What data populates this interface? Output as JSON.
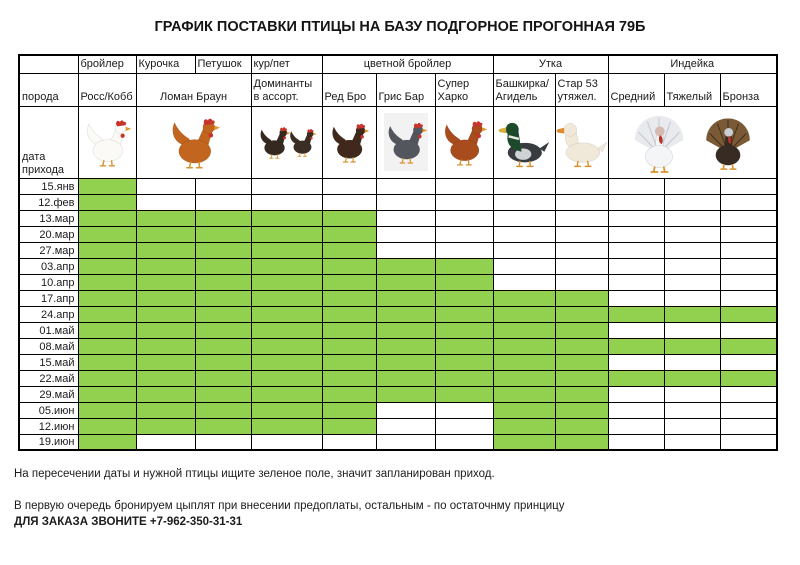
{
  "title": "ГРАФИК ПОСТАВКИ ПТИЦЫ НА БАЗУ ПОДГОРНОЕ ПРОГОННАЯ 79Б",
  "colors": {
    "scheduled_green": "#92d050",
    "border": "#000000"
  },
  "table": {
    "breed_label": "порода",
    "date_label": "дата прихода",
    "groups": {
      "broiler": "бройлер",
      "hen": "Курочка",
      "rooster": "Петушок",
      "hen_rooster": "кур/пет",
      "colored_broiler": "цветной бройлер",
      "duck": "Утка",
      "turkey": "Индейка"
    },
    "breeds": {
      "ross_cobb": "Росс/Кобб",
      "loman_braun": "Ломан Браун",
      "dominanty": "Доминанты в ассорт.",
      "red_bro": "Ред Бро",
      "gris_bar": "Грис Бар",
      "super_harko": "Супер Харко",
      "bashkirka": "Башкирка/Агидель",
      "star53": "Стар 53 утяжел.",
      "sredniy": "Средний",
      "tyazhelyi": "Тяжелый",
      "bronza": "Бронза"
    },
    "bird_photos": [
      "white-broiler-chicken-photo",
      "brown-loman-braun-hen-photo",
      "two-dark-dominant-hens-photo",
      "dark-red-bro-hen-photo",
      "gray-gris-bar-rooster-photo",
      "red-super-harko-hen-photo",
      "mallard-bashkirka-duck-photo",
      "white-star53-duck-photo",
      "white-turkey-photo",
      "bronze-turkey-photo"
    ],
    "columns": [
      "Росс/Кобб",
      "Ломан Браун (Курочка)",
      "Ломан Браун (Петушок)",
      "Доминанты в ассорт.",
      "Ред Бро",
      "Грис Бар",
      "Супер Харко",
      "Башкирка/Агидель",
      "Стар 53 утяжел.",
      "Средний",
      "Тяжелый",
      "Бронза"
    ],
    "rows": [
      {
        "date": "15.янв",
        "cells": [
          1,
          0,
          0,
          0,
          0,
          0,
          0,
          0,
          0,
          0,
          0,
          0
        ]
      },
      {
        "date": "12.фев",
        "cells": [
          1,
          0,
          0,
          0,
          0,
          0,
          0,
          0,
          0,
          0,
          0,
          0
        ]
      },
      {
        "date": "13.мар",
        "cells": [
          1,
          1,
          1,
          1,
          1,
          0,
          0,
          0,
          0,
          0,
          0,
          0
        ]
      },
      {
        "date": "20.мар",
        "cells": [
          1,
          1,
          1,
          1,
          1,
          0,
          0,
          0,
          0,
          0,
          0,
          0
        ]
      },
      {
        "date": "27.мар",
        "cells": [
          1,
          1,
          1,
          1,
          1,
          0,
          0,
          0,
          0,
          0,
          0,
          0
        ]
      },
      {
        "date": "03.апр",
        "cells": [
          1,
          1,
          1,
          1,
          1,
          1,
          1,
          0,
          0,
          0,
          0,
          0
        ]
      },
      {
        "date": "10.апр",
        "cells": [
          1,
          1,
          1,
          1,
          1,
          1,
          1,
          0,
          0,
          0,
          0,
          0
        ]
      },
      {
        "date": "17.апр",
        "cells": [
          1,
          1,
          1,
          1,
          1,
          1,
          1,
          1,
          1,
          0,
          0,
          0
        ]
      },
      {
        "date": "24.апр",
        "cells": [
          1,
          1,
          1,
          1,
          1,
          1,
          1,
          1,
          1,
          1,
          1,
          1
        ]
      },
      {
        "date": "01.май",
        "cells": [
          1,
          1,
          1,
          1,
          1,
          1,
          1,
          1,
          1,
          0,
          0,
          0
        ]
      },
      {
        "date": "08.май",
        "cells": [
          1,
          1,
          1,
          1,
          1,
          1,
          1,
          1,
          1,
          1,
          1,
          1
        ]
      },
      {
        "date": "15.май",
        "cells": [
          1,
          1,
          1,
          1,
          1,
          1,
          1,
          1,
          1,
          0,
          0,
          0
        ]
      },
      {
        "date": "22.май",
        "cells": [
          1,
          1,
          1,
          1,
          1,
          1,
          1,
          1,
          1,
          1,
          1,
          1
        ]
      },
      {
        "date": "29.май",
        "cells": [
          1,
          1,
          1,
          1,
          1,
          1,
          1,
          1,
          1,
          0,
          0,
          0
        ]
      },
      {
        "date": "05.июн",
        "cells": [
          1,
          1,
          1,
          1,
          1,
          0,
          0,
          1,
          1,
          0,
          0,
          0
        ]
      },
      {
        "date": "12.июн",
        "cells": [
          1,
          1,
          1,
          1,
          1,
          0,
          0,
          1,
          1,
          0,
          0,
          0
        ]
      },
      {
        "date": "19.июн",
        "cells": [
          1,
          0,
          0,
          0,
          0,
          0,
          0,
          1,
          1,
          0,
          0,
          0
        ]
      }
    ]
  },
  "footer": {
    "note1": "На пересечении даты и нужной птицы ищите зеленое поле, значит запланирован приход.",
    "note2": "В первую очередь бронируем цыплят при внесении предоплаты, остальным - по остаточнму принцицу",
    "order_phone": "ДЛЯ ЗАКАЗА ЗВОНИТЕ +7-962-350-31-31"
  }
}
